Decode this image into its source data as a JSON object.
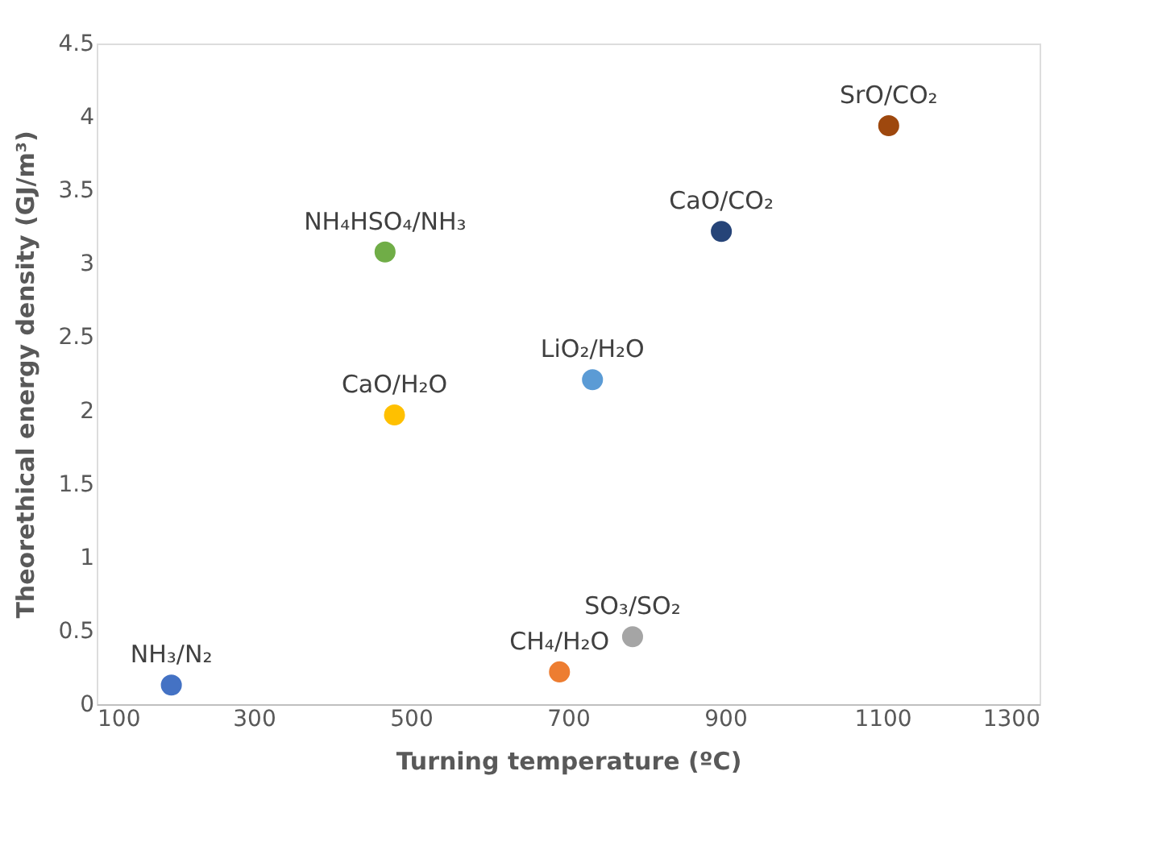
{
  "chart_data": {
    "type": "scatter",
    "xlabel": "Turning temperature (ºC)",
    "ylabel": "Theorethical energy density (GJ/m³)",
    "xlim": [
      100,
      1300
    ],
    "xticks": [
      100,
      300,
      500,
      700,
      900,
      1100,
      1300
    ],
    "ylim": [
      0,
      4.5
    ],
    "yticks": [
      0,
      0.5,
      1,
      1.5,
      2,
      2.5,
      3,
      3.5,
      4,
      4.5
    ],
    "grid": false,
    "legend": false,
    "marker": "circle",
    "series": [
      {
        "name": "NH₃/N₂",
        "color": "#4472c4",
        "x": [
          195
        ],
        "values": [
          0.13
        ]
      },
      {
        "name": "NH₄HSO₄/NH₃",
        "color": "#70ad47",
        "x": [
          467
        ],
        "values": [
          3.08
        ]
      },
      {
        "name": "CaO/H₂O",
        "color": "#ffc000",
        "x": [
          479
        ],
        "values": [
          1.97
        ]
      },
      {
        "name": "LiO₂/H₂O",
        "color": "#5b9bd5",
        "x": [
          731
        ],
        "values": [
          2.21
        ]
      },
      {
        "name": "CaO/CO₂",
        "color": "#264478",
        "x": [
          895
        ],
        "values": [
          3.22
        ]
      },
      {
        "name": "SrO/CO₂",
        "color": "#9e480e",
        "x": [
          1108
        ],
        "values": [
          3.94
        ]
      },
      {
        "name": "CH₄/H₂O",
        "color": "#ed7d31",
        "x": [
          689
        ],
        "values": [
          0.22
        ]
      },
      {
        "name": "SO₃/SO₂",
        "color": "#a5a5a5",
        "x": [
          782
        ],
        "values": [
          0.46
        ]
      }
    ]
  }
}
